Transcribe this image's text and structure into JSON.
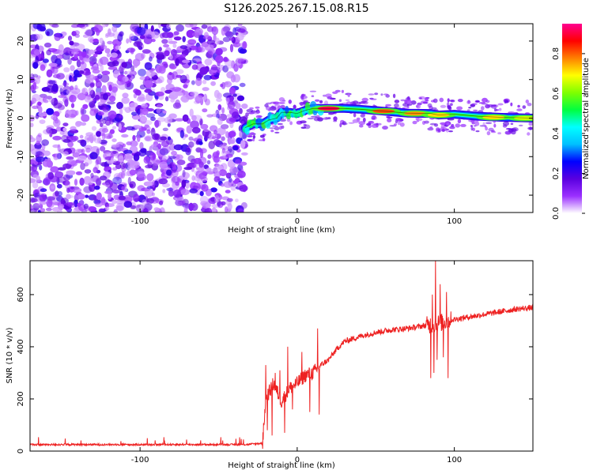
{
  "title": "S126.2025.267.15.08.R15",
  "chart_data": [
    {
      "type": "heatmap",
      "title": "S126.2025.267.15.08.R15",
      "xlabel": "Height of straight line (km)",
      "ylabel": "Frequency (Hz)",
      "xlim": [
        -170,
        150
      ],
      "ylim": [
        -24.5,
        24.5
      ],
      "xticks": [
        -100,
        0,
        100
      ],
      "yticks": [
        -20,
        -10,
        0,
        10,
        20
      ],
      "xtick_labels": [
        "-100",
        "0",
        "100"
      ],
      "ytick_labels": [
        "-20",
        "-10",
        "0",
        "10",
        "20"
      ],
      "colorbar": {
        "label": "Normalized spectral amplitude",
        "range": [
          0,
          0.95
        ],
        "ticks": [
          0.0,
          0.2,
          0.4,
          0.6,
          0.8
        ],
        "tick_labels": [
          "0.0",
          "0.2",
          "0.4",
          "0.6",
          "0.8"
        ],
        "colormap": [
          "#ffffff",
          "#9b30ff",
          "#5a00e0",
          "#0000ff",
          "#00bfff",
          "#00ffff",
          "#00ff40",
          "#7fff00",
          "#ffff00",
          "#ff8000",
          "#ff0000",
          "#ff0090"
        ]
      },
      "noise_region_x": [
        -170,
        -33
      ],
      "signal_track": [
        {
          "x": -33,
          "y": -2.5
        },
        {
          "x": -28,
          "y": -1.5
        },
        {
          "x": -22,
          "y": -1.5
        },
        {
          "x": -18,
          "y": -0.5
        },
        {
          "x": -13,
          "y": 0.0
        },
        {
          "x": -10,
          "y": 1.5
        },
        {
          "x": -5,
          "y": 1.5
        },
        {
          "x": 0,
          "y": 1.2
        },
        {
          "x": 5,
          "y": 2.0
        },
        {
          "x": 10,
          "y": 2.5
        },
        {
          "x": 20,
          "y": 2.5
        },
        {
          "x": 30,
          "y": 2.5
        },
        {
          "x": 40,
          "y": 2.3
        },
        {
          "x": 55,
          "y": 1.8
        },
        {
          "x": 70,
          "y": 1.3
        },
        {
          "x": 85,
          "y": 1.2
        },
        {
          "x": 90,
          "y": 0.8
        },
        {
          "x": 100,
          "y": 1.0
        },
        {
          "x": 115,
          "y": 0.5
        },
        {
          "x": 130,
          "y": 0.2
        },
        {
          "x": 150,
          "y": 0.0
        }
      ],
      "hot_spots": [
        {
          "x": 20,
          "y": 2.5,
          "amp": 0.95
        },
        {
          "x": 55,
          "y": 1.8,
          "amp": 0.85
        },
        {
          "x": 75,
          "y": 1.2,
          "amp": 0.8
        },
        {
          "x": 90,
          "y": 0.8,
          "amp": 0.75
        },
        {
          "x": 125,
          "y": 0.2,
          "amp": 0.75
        },
        {
          "x": 145,
          "y": 0.0,
          "amp": 0.7
        }
      ]
    },
    {
      "type": "line",
      "xlabel": "Height of straight line (km)",
      "ylabel": "SNR (10 * v/v)",
      "xlim": [
        -170,
        150
      ],
      "ylim": [
        0,
        730
      ],
      "xticks": [
        -100,
        0,
        100
      ],
      "yticks": [
        0,
        200,
        400,
        600
      ],
      "xtick_labels": [
        "-100",
        "0",
        "100"
      ],
      "ytick_labels": [
        "0",
        "200",
        "400",
        "600"
      ],
      "series": [
        {
          "name": "SNR",
          "color": "#ee2222",
          "trend": [
            {
              "x": -170,
              "y": 25
            },
            {
              "x": -33,
              "y": 25
            },
            {
              "x": -22,
              "y": 30
            },
            {
              "x": -20,
              "y": 200
            },
            {
              "x": -15,
              "y": 260
            },
            {
              "x": -10,
              "y": 190
            },
            {
              "x": -5,
              "y": 240
            },
            {
              "x": 0,
              "y": 260
            },
            {
              "x": 5,
              "y": 290
            },
            {
              "x": 10,
              "y": 300
            },
            {
              "x": 15,
              "y": 330
            },
            {
              "x": 20,
              "y": 350
            },
            {
              "x": 25,
              "y": 390
            },
            {
              "x": 30,
              "y": 420
            },
            {
              "x": 40,
              "y": 440
            },
            {
              "x": 50,
              "y": 455
            },
            {
              "x": 60,
              "y": 465
            },
            {
              "x": 70,
              "y": 470
            },
            {
              "x": 80,
              "y": 480
            },
            {
              "x": 90,
              "y": 490
            },
            {
              "x": 100,
              "y": 505
            },
            {
              "x": 110,
              "y": 515
            },
            {
              "x": 120,
              "y": 525
            },
            {
              "x": 130,
              "y": 535
            },
            {
              "x": 140,
              "y": 545
            },
            {
              "x": 150,
              "y": 550
            }
          ],
          "spikes": [
            {
              "x": -20,
              "y": 330
            },
            {
              "x": -19,
              "y": 80
            },
            {
              "x": -16,
              "y": 60
            },
            {
              "x": -14,
              "y": 300
            },
            {
              "x": -11,
              "y": 310
            },
            {
              "x": -8,
              "y": 70
            },
            {
              "x": -6,
              "y": 400
            },
            {
              "x": -3,
              "y": 160
            },
            {
              "x": 3,
              "y": 380
            },
            {
              "x": 8,
              "y": 150
            },
            {
              "x": 13,
              "y": 470
            },
            {
              "x": 14,
              "y": 140
            },
            {
              "x": 85,
              "y": 280
            },
            {
              "x": 86,
              "y": 600
            },
            {
              "x": 87,
              "y": 300
            },
            {
              "x": 88,
              "y": 730
            },
            {
              "x": 89,
              "y": 350
            },
            {
              "x": 91,
              "y": 640
            },
            {
              "x": 93,
              "y": 360
            },
            {
              "x": 95,
              "y": 610
            },
            {
              "x": 96,
              "y": 280
            },
            {
              "x": 97,
              "y": 500
            }
          ]
        }
      ]
    }
  ]
}
